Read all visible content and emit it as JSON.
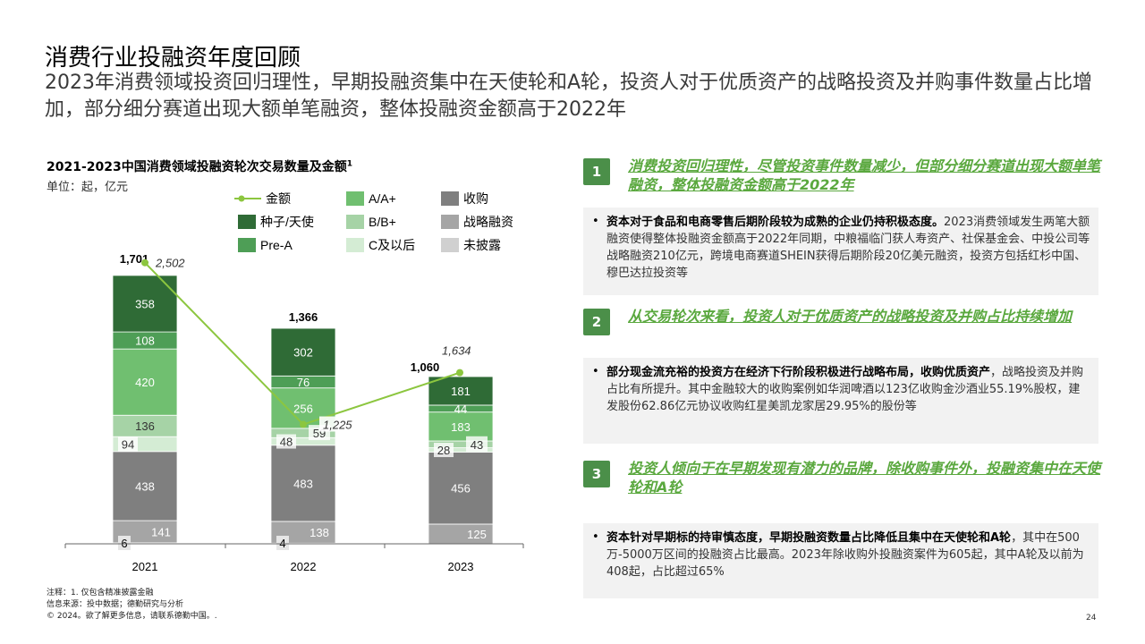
{
  "header": {
    "title": "消费行业投融资年度回顾",
    "subtitle": "2023年消费领域投资回归理性，早期投融资集中在天使轮和A轮，投资人对于优质资产的战略投资及并购事件数量占比增加，部分细分赛道出现大额单笔融资，整体投融资金额高于2022年"
  },
  "chart_panel": {
    "title": "2021-2023中国消费领域投融资轮次交易数量及金额",
    "title_superscript": "1",
    "unit": "单位：起，亿元"
  },
  "chart_data": {
    "type": "bar",
    "stacked": true,
    "categories": [
      "2021",
      "2022",
      "2023"
    ],
    "series": [
      {
        "name": "未披露",
        "values": [
          6,
          4,
          0
        ],
        "color": "#d0d0d0"
      },
      {
        "name": "战略融资",
        "values": [
          141,
          138,
          125
        ],
        "color": "#a5a5a5"
      },
      {
        "name": "收购",
        "values": [
          438,
          483,
          456
        ],
        "color": "#7f7f7f"
      },
      {
        "name": "C及以后",
        "values": [
          94,
          48,
          28
        ],
        "color": "#d4ecd4"
      },
      {
        "name": "B/B+",
        "values": [
          136,
          59,
          43
        ],
        "color": "#a6d3a6"
      },
      {
        "name": "A/A+",
        "values": [
          420,
          256,
          183
        ],
        "color": "#70bf70"
      },
      {
        "name": "Pre-A",
        "values": [
          108,
          76,
          44
        ],
        "color": "#4e9e56"
      },
      {
        "name": "种子/天使",
        "values": [
          358,
          302,
          181
        ],
        "color": "#2f6b36"
      }
    ],
    "totals": [
      "1,701",
      "1,366",
      "1,060"
    ],
    "line": {
      "name": "金额",
      "values": [
        2502,
        1225,
        1634
      ],
      "labels": [
        "2,502",
        "1,225",
        "1,634"
      ],
      "color": "#8cc63f"
    },
    "legend": [
      {
        "name": "金额",
        "kind": "line",
        "color": "#8cc63f"
      },
      {
        "name": "种子/天使",
        "kind": "box",
        "color": "#2f6b36"
      },
      {
        "name": "Pre-A",
        "kind": "box",
        "color": "#4e9e56"
      },
      {
        "name": "A/A+",
        "kind": "box",
        "color": "#70bf70"
      },
      {
        "name": "B/B+",
        "kind": "box",
        "color": "#a6d3a6"
      },
      {
        "name": "C及以后",
        "kind": "box",
        "color": "#d4ecd4"
      },
      {
        "name": "收购",
        "kind": "box",
        "color": "#7f7f7f"
      },
      {
        "name": "战略融资",
        "kind": "box",
        "color": "#a5a5a5"
      },
      {
        "name": "未披露",
        "kind": "box",
        "color": "#d0d0d0"
      }
    ],
    "legend_placement": "top",
    "grid": false
  },
  "points": [
    {
      "number": "1",
      "heading": "消费投资回归理性，尽管投资事件数量减少，但部分细分赛道出现大额单笔融资，整体投融资金额高于2022年",
      "lead": "资本对于食品和电商零售后期阶段较为成熟的企业仍持积极态度。",
      "body": "2023消费领域发生两笔大额融资使得整体投融资金额高于2022年同期，中粮福临门获人寿资产、社保基金会、中投公司等战略融资210亿元，跨境电商赛道SHEIN获得后期阶段20亿美元融资，投资方包括红杉中国、穆巴达拉投资等"
    },
    {
      "number": "2",
      "heading": "从交易轮次来看，投资人对于优质资产的战略投资及并购占比持续增加",
      "lead": "部分现金流充裕的投资方在经济下行阶段积极进行战略布局，收购优质资产",
      "body": "，战略投资及并购占比有所提升。其中金融较大的收购案例如华润啤酒以123亿收购金沙酒业55.19%股权，建发股份62.86亿元协议收购红星美凯龙家居29.95%的股份等"
    },
    {
      "number": "3",
      "heading": "投资人倾向于在早期发现有潜力的品牌，除收购事件外，投融资集中在天使轮和A轮",
      "lead": "资本针对早期标的持审慎态度，早期投融资数量占比降低且集中在天使轮和A轮",
      "body": "，其中在500万-5000万区间的投融资占比最高。2023年除收购外投融资案件为605起，其中A轮及以前为408起，占比超过65%"
    }
  ],
  "footer": {
    "note": "注释：1. 仅包含精准披露金融",
    "source": "信息来源：投中数据；德勤研究与分析",
    "copyright": "© 2024。欲了解更多信息，请联系德勤中国。.",
    "page": "24"
  }
}
